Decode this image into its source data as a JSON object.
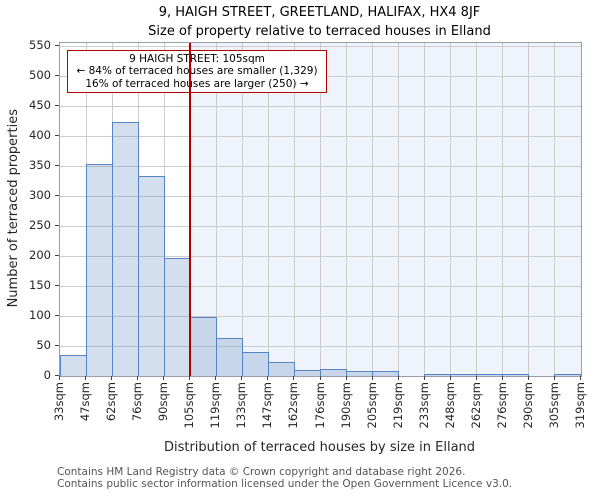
{
  "title": "9, HAIGH STREET, GREETLAND, HALIFAX, HX4 8JF",
  "subtitle": "Size of property relative to terraced houses in Elland",
  "ylabel": "Number of terraced properties",
  "xlabel": "Distribution of terraced houses by size in Elland",
  "annotation": {
    "line1": "9 HAIGH STREET: 105sqm",
    "line2": "← 84% of terraced houses are smaller (1,329)",
    "line3": "16% of terraced houses are larger (250) →"
  },
  "footer": [
    "Contains HM Land Registry data © Crown copyright and database right 2026.",
    "Contains public sector information licensed under the Open Government Licence v3.0."
  ],
  "chart_data": {
    "type": "bar",
    "title": "9, HAIGH STREET, GREETLAND, HALIFAX, HX4 8JF",
    "subtitle": "Size of property relative to terraced houses in Elland",
    "xlabel": "Distribution of terraced houses by size in Elland",
    "ylabel": "Number of terraced properties",
    "bin_edges_sqm": [
      33,
      47,
      62,
      76,
      90,
      105,
      119,
      133,
      147,
      162,
      176,
      190,
      205,
      219,
      233,
      248,
      262,
      276,
      290,
      305,
      319
    ],
    "tick_labels": [
      "33sqm",
      "47sqm",
      "62sqm",
      "76sqm",
      "90sqm",
      "105sqm",
      "119sqm",
      "133sqm",
      "147sqm",
      "162sqm",
      "176sqm",
      "190sqm",
      "205sqm",
      "219sqm",
      "233sqm",
      "248sqm",
      "262sqm",
      "276sqm",
      "290sqm",
      "305sqm",
      "319sqm"
    ],
    "values": [
      34,
      352,
      422,
      332,
      195,
      96,
      62,
      38,
      21,
      8,
      10,
      7,
      7,
      0,
      1,
      1,
      1,
      1,
      0,
      2
    ],
    "marker_value_sqm": 105,
    "marker_bin_index": 5,
    "ylim": [
      0,
      550
    ],
    "ytick_step": 50,
    "grid": true,
    "colors": {
      "bar_fill": "rgba(110,148,202,0.30)",
      "bar_edge": "#5585c4",
      "marker_line": "#b00000",
      "annotation_border": "#b00000",
      "shade_right_of_marker": "#eff3fb",
      "gridline": "#cccccc"
    }
  }
}
